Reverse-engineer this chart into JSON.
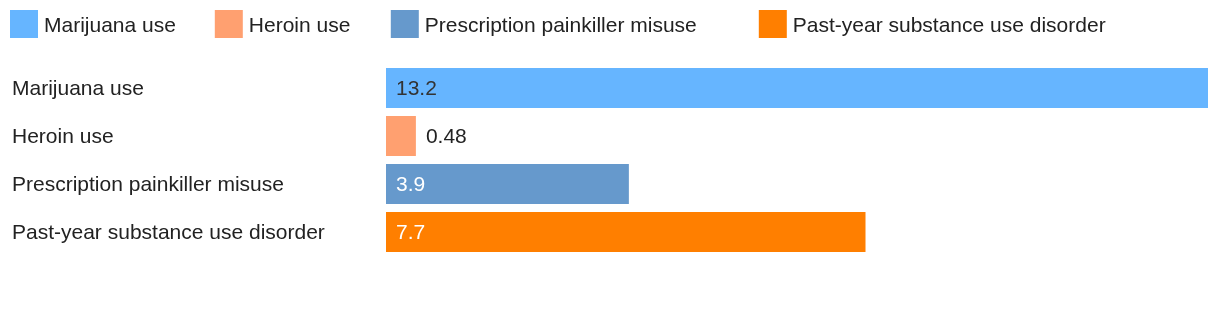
{
  "chart_data": {
    "type": "bar",
    "orientation": "horizontal",
    "categories": [
      "Marijuana use",
      "Heroin use",
      "Prescription painkiller misuse",
      "Past-year substance use disorder"
    ],
    "series": [
      {
        "name": "Marijuana use",
        "color": "#66b5ff",
        "values": [
          13.2,
          null,
          null,
          null
        ]
      },
      {
        "name": "Heroin use",
        "color": "#ffa070",
        "values": [
          null,
          0.48,
          null,
          null
        ]
      },
      {
        "name": "Prescription painkiller misuse",
        "color": "#6699cc",
        "values": [
          null,
          null,
          3.9,
          null
        ]
      },
      {
        "name": "Past-year substance use disorder",
        "color": "#ff7f00",
        "values": [
          null,
          null,
          null,
          7.7
        ]
      }
    ],
    "data_labels": true,
    "legend": "top"
  }
}
